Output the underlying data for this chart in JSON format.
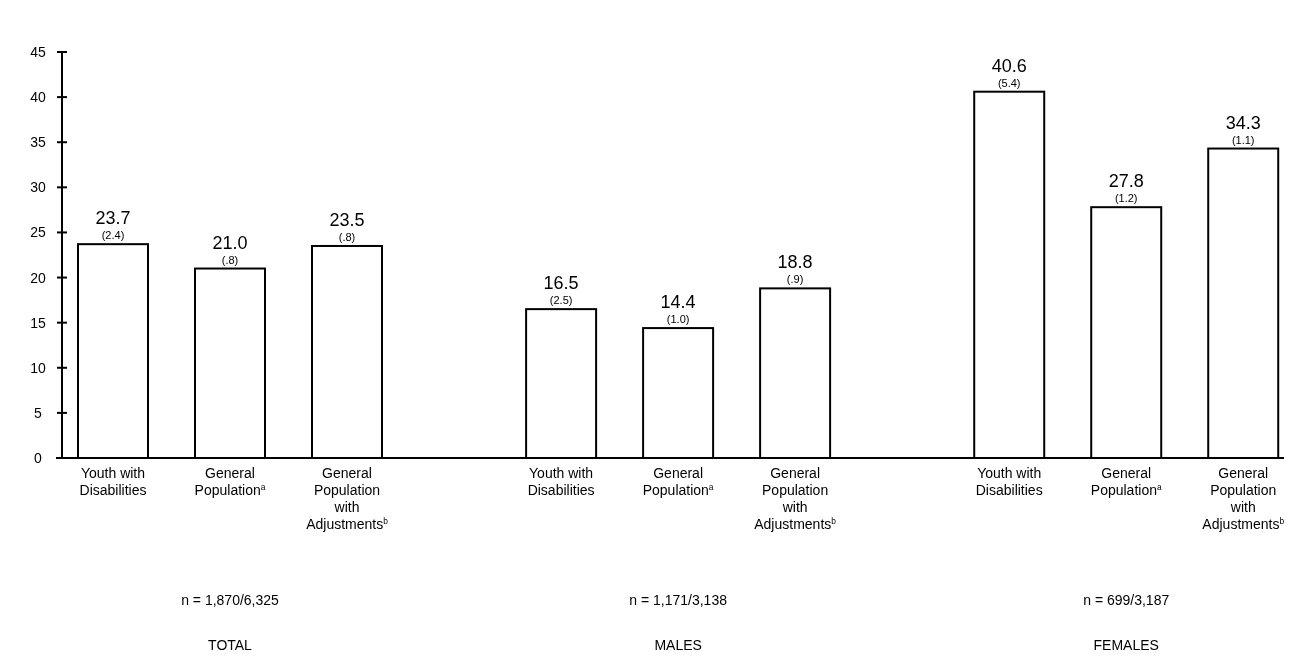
{
  "chart_data": {
    "type": "bar",
    "categories": [
      "Youth with Disabilities",
      "General Population$^{a}$",
      "General Population with Adjustments$^{b}$",
      "Youth with Disabilities",
      "General Population$^{a}$",
      "General Population with Adjustments$^{b}$",
      "Youth with Disabilities",
      "General Population$^{a}$",
      "General Population with Adjustments$^{b}$"
    ],
    "values": [
      23.7,
      21.0,
      23.5,
      16.5,
      14.4,
      18.8,
      40.6,
      27.8,
      34.3
    ],
    "value_labels": [
      "23.7",
      "21.0",
      "23.5",
      "16.5",
      "14.4",
      "18.8",
      "40.6",
      "27.8",
      "34.3"
    ],
    "color": "#ffffff",
    "ylim": [
      0,
      45
    ],
    "yticks": [
      0,
      5,
      10,
      15,
      20,
      25,
      30,
      35,
      40,
      45
    ],
    "grid": false,
    "annotations": [
      {
        "text": "(2.4)",
        "y": 23.7
      },
      {
        "text": "(.8)",
        "y": 21.0
      },
      {
        "text": "(.8)",
        "y": 23.5
      },
      {
        "text": "(2.5)",
        "y": 16.5
      },
      {
        "text": "(1.0)",
        "y": 14.4
      },
      {
        "text": "(.9)",
        "y": 18.8
      },
      {
        "text": "(5.4)",
        "y": 40.6
      },
      {
        "text": "(1.2)",
        "y": 27.8
      },
      {
        "text": "(1.1)",
        "y": 34.3
      },
      "n = 1,870/6,325",
      "n = 1,171/3,138",
      "n = 699/3,187",
      "TOTAL",
      "MALES",
      "FEMALES"
    ]
  }
}
